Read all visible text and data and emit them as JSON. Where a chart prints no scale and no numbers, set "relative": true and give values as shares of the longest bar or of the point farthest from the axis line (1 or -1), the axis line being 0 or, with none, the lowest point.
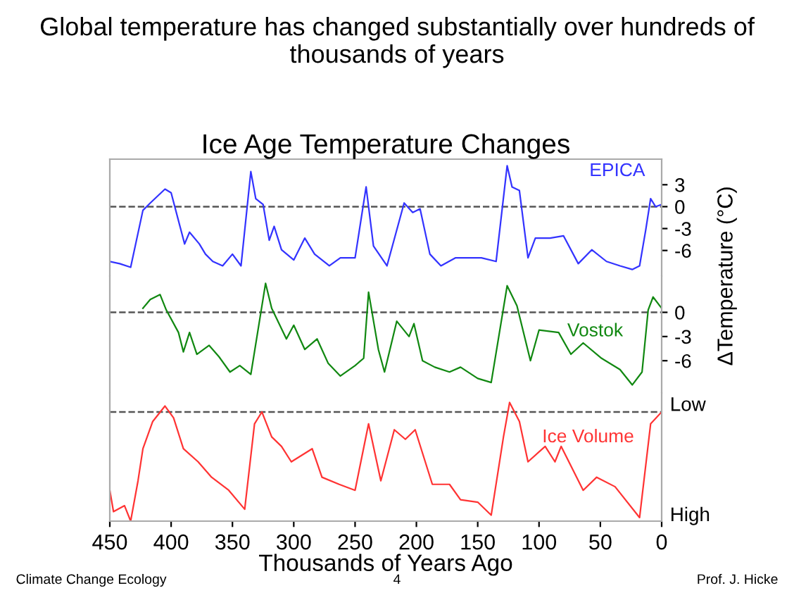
{
  "chart_data": [
    {
      "type": "line",
      "title": "Ice Age Temperature Changes",
      "annotations": [
        "Global temperature has changed substantially over hundreds of thousands of years"
      ],
      "ylabel": "ΔTemperature (°C)",
      "xlim": [
        450,
        0
      ],
      "xticks": [
        450,
        400,
        350,
        300,
        250,
        200,
        150,
        100,
        50,
        0
      ],
      "ylim": [
        -9.5,
        6.5
      ],
      "yticks": [
        3,
        0,
        -3,
        -6
      ],
      "tick_labels": "y",
      "grid": false,
      "legend": false,
      "ref_lines": [
        {
          "axis": "y",
          "value": 0,
          "color": "#555555",
          "line_style": "dashed"
        }
      ],
      "series": [
        {
          "name": "EPICA",
          "color": "#3333ff",
          "x": [
            450,
            442,
            433,
            423,
            417,
            405,
            400,
            389,
            385,
            377,
            372,
            366,
            358,
            350,
            343,
            335,
            331,
            325,
            320,
            316,
            310,
            300,
            291,
            283,
            271,
            262,
            250,
            241,
            235,
            224,
            210,
            203,
            197,
            189,
            180,
            168,
            157,
            147,
            135,
            126,
            122,
            116,
            109,
            103,
            91,
            80,
            68,
            57,
            45,
            34,
            24,
            18,
            13,
            9,
            5,
            0
          ],
          "values": [
            -7.5,
            -7.8,
            -8.3,
            -0.5,
            0.5,
            2.4,
            1.9,
            -5.1,
            -3.5,
            -5.1,
            -6.5,
            -7.5,
            -8.1,
            -6.5,
            -8.1,
            4.8,
            1.1,
            0.3,
            -4.6,
            -2.7,
            -5.9,
            -7.3,
            -4.3,
            -6.5,
            -8.1,
            -7.0,
            -7.0,
            2.7,
            -5.4,
            -8.1,
            0.5,
            -0.8,
            -0.3,
            -6.5,
            -8.1,
            -7.0,
            -7.0,
            -7.0,
            -7.5,
            5.6,
            2.7,
            2.2,
            -7.0,
            -4.3,
            -4.3,
            -4.0,
            -7.8,
            -5.9,
            -7.5,
            -8.1,
            -8.6,
            -8.1,
            -3.2,
            1.1,
            0.0,
            0.3
          ]
        }
      ]
    },
    {
      "type": "line",
      "xlim": [
        450,
        0
      ],
      "xticks": [
        450,
        400,
        350,
        300,
        250,
        200,
        150,
        100,
        50,
        0
      ],
      "ylim": [
        -10,
        4.5
      ],
      "yticks": [
        0,
        -3,
        -6
      ],
      "tick_labels": "y",
      "grid": false,
      "legend": false,
      "ref_lines": [
        {
          "axis": "y",
          "value": 0,
          "color": "#555555",
          "line_style": "dashed"
        }
      ],
      "series": [
        {
          "name": "Vostok",
          "color": "#118811",
          "x": [
            423,
            417,
            409,
            404,
            394,
            390,
            385,
            379,
            369,
            361,
            352,
            344,
            335,
            323,
            318,
            306,
            300,
            291,
            281,
            272,
            262,
            250,
            243,
            239,
            231,
            226,
            216,
            206,
            202,
            195,
            185,
            173,
            164,
            150,
            139,
            126,
            118,
            107,
            100,
            84,
            74,
            64,
            49,
            34,
            24,
            16,
            11,
            7,
            0
          ],
          "values": [
            0.5,
            1.6,
            2.2,
            0.3,
            -2.5,
            -4.9,
            -2.5,
            -5.2,
            -4.1,
            -5.5,
            -7.4,
            -6.6,
            -7.7,
            3.6,
            0.5,
            -3.3,
            -1.6,
            -4.6,
            -3.3,
            -6.3,
            -7.9,
            -6.6,
            -5.7,
            2.5,
            -4.6,
            -7.4,
            -1.1,
            -3.0,
            -1.4,
            -6.0,
            -6.8,
            -7.4,
            -6.8,
            -8.2,
            -8.7,
            3.3,
            0.8,
            -6.0,
            -2.2,
            -2.5,
            -5.2,
            -3.8,
            -5.7,
            -7.1,
            -9.0,
            -7.4,
            0.3,
            1.9,
            0.5
          ]
        }
      ]
    },
    {
      "type": "line",
      "xlabel": "Thousands of Years Ago",
      "annotations": [
        "Climate Change Ecology",
        "4",
        "Prof. J. Hicke",
        "Low",
        "High"
      ],
      "relative": true,
      "xlim": [
        450,
        0
      ],
      "xticks": [
        450,
        400,
        350,
        300,
        250,
        200,
        150,
        100,
        50,
        0
      ],
      "grid": false,
      "legend": false,
      "ref_lines": [
        {
          "axis": "y",
          "value": 0.92,
          "color": "#555555",
          "line_style": "dashed"
        }
      ],
      "series": [
        {
          "name": "Ice Volume",
          "color": "#ff3333",
          "x": [
            450,
            447,
            438,
            433,
            427,
            423,
            415,
            405,
            398,
            390,
            378,
            367,
            353,
            340,
            332,
            326,
            318,
            310,
            302,
            285,
            277,
            263,
            250,
            239,
            229,
            218,
            209,
            201,
            187,
            173,
            164,
            150,
            139,
            129,
            124,
            116,
            109,
            95,
            87,
            82,
            64,
            53,
            38,
            18,
            9,
            0
          ],
          "values": [
            0.26,
            0.08,
            0.13,
            0,
            0.34,
            0.61,
            0.84,
            0.97,
            0.87,
            0.61,
            0.5,
            0.37,
            0.26,
            0.1,
            0.82,
            0.92,
            0.71,
            0.63,
            0.5,
            0.61,
            0.37,
            0.31,
            0.26,
            0.82,
            0.34,
            0.77,
            0.69,
            0.77,
            0.31,
            0.31,
            0.18,
            0.16,
            0.05,
            0.71,
            1,
            0.84,
            0.5,
            0.63,
            0.5,
            0.63,
            0.26,
            0.37,
            0.29,
            0.03,
            0.82,
            0.92
          ]
        }
      ]
    }
  ]
}
